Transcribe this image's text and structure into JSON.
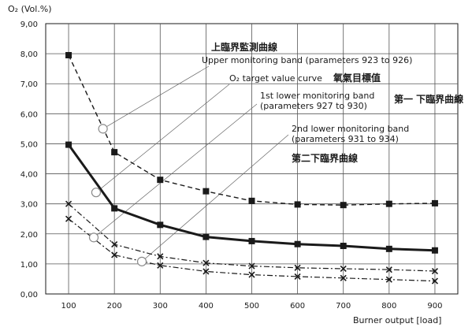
{
  "chart_data": {
    "type": "line",
    "ylabel": "O₂ (Vol.%)",
    "xlabel": "Burner output [load]",
    "x": [
      100,
      200,
      300,
      400,
      500,
      600,
      700,
      800,
      900
    ],
    "x_ticks": [
      "100",
      "200",
      "300",
      "400",
      "500",
      "600",
      "700",
      "800",
      "900"
    ],
    "y_ticks": [
      "0,00",
      "1,00",
      "2,00",
      "3,00",
      "4,00",
      "5,00",
      "6,00",
      "7,00",
      "8,00",
      "9,00"
    ],
    "xlim": [
      50,
      950
    ],
    "ylim": [
      0,
      9
    ],
    "grid": true,
    "series": [
      {
        "id": "upper",
        "style": "dashed",
        "marker": "square",
        "points": [
          [
            100,
            7.95
          ],
          [
            200,
            4.72
          ],
          [
            300,
            3.8
          ],
          [
            400,
            3.42
          ],
          [
            500,
            3.1
          ],
          [
            600,
            2.98
          ],
          [
            700,
            2.96
          ],
          [
            800,
            3.0
          ],
          [
            900,
            3.02
          ]
        ]
      },
      {
        "id": "target",
        "style": "solid-bold",
        "marker": "square",
        "points": [
          [
            100,
            4.97
          ],
          [
            200,
            2.85
          ],
          [
            300,
            2.3
          ],
          [
            400,
            1.9
          ],
          [
            500,
            1.76
          ],
          [
            600,
            1.66
          ],
          [
            700,
            1.6
          ],
          [
            800,
            1.5
          ],
          [
            900,
            1.45
          ]
        ]
      },
      {
        "id": "lower1",
        "style": "dash-dot",
        "marker": "x",
        "points": [
          [
            100,
            3.0
          ],
          [
            200,
            1.65
          ],
          [
            300,
            1.25
          ],
          [
            400,
            1.03
          ],
          [
            500,
            0.93
          ],
          [
            600,
            0.87
          ],
          [
            700,
            0.84
          ],
          [
            800,
            0.81
          ],
          [
            900,
            0.76
          ]
        ]
      },
      {
        "id": "lower2",
        "style": "dash-dot",
        "marker": "x",
        "points": [
          [
            100,
            2.5
          ],
          [
            200,
            1.3
          ],
          [
            300,
            0.95
          ],
          [
            400,
            0.75
          ],
          [
            500,
            0.64
          ],
          [
            600,
            0.58
          ],
          [
            700,
            0.53
          ],
          [
            800,
            0.48
          ],
          [
            900,
            0.43
          ]
        ]
      }
    ],
    "annotations": [
      {
        "id": "ann-upper",
        "lines": [
          "Upper monitoring band (parameters 923 to 926)"
        ],
        "cjk": "上臨界監測曲線",
        "anchor": [
          175,
          5.5
        ]
      },
      {
        "id": "ann-target",
        "lines": [
          "O₂ target value curve"
        ],
        "cjk": "氧氣目標值",
        "anchor": [
          160,
          3.38
        ]
      },
      {
        "id": "ann-lower1",
        "lines": [
          "1st lower monitoring band",
          "(parameters 927 to 930)"
        ],
        "cjk": "第一 下臨界曲線",
        "anchor": [
          155,
          1.88
        ]
      },
      {
        "id": "ann-lower2",
        "lines": [
          "2nd lower monitoring band",
          "(parameters 931 to 934)"
        ],
        "cjk": "第二下臨界曲線",
        "anchor": [
          260,
          1.08
        ]
      }
    ]
  }
}
